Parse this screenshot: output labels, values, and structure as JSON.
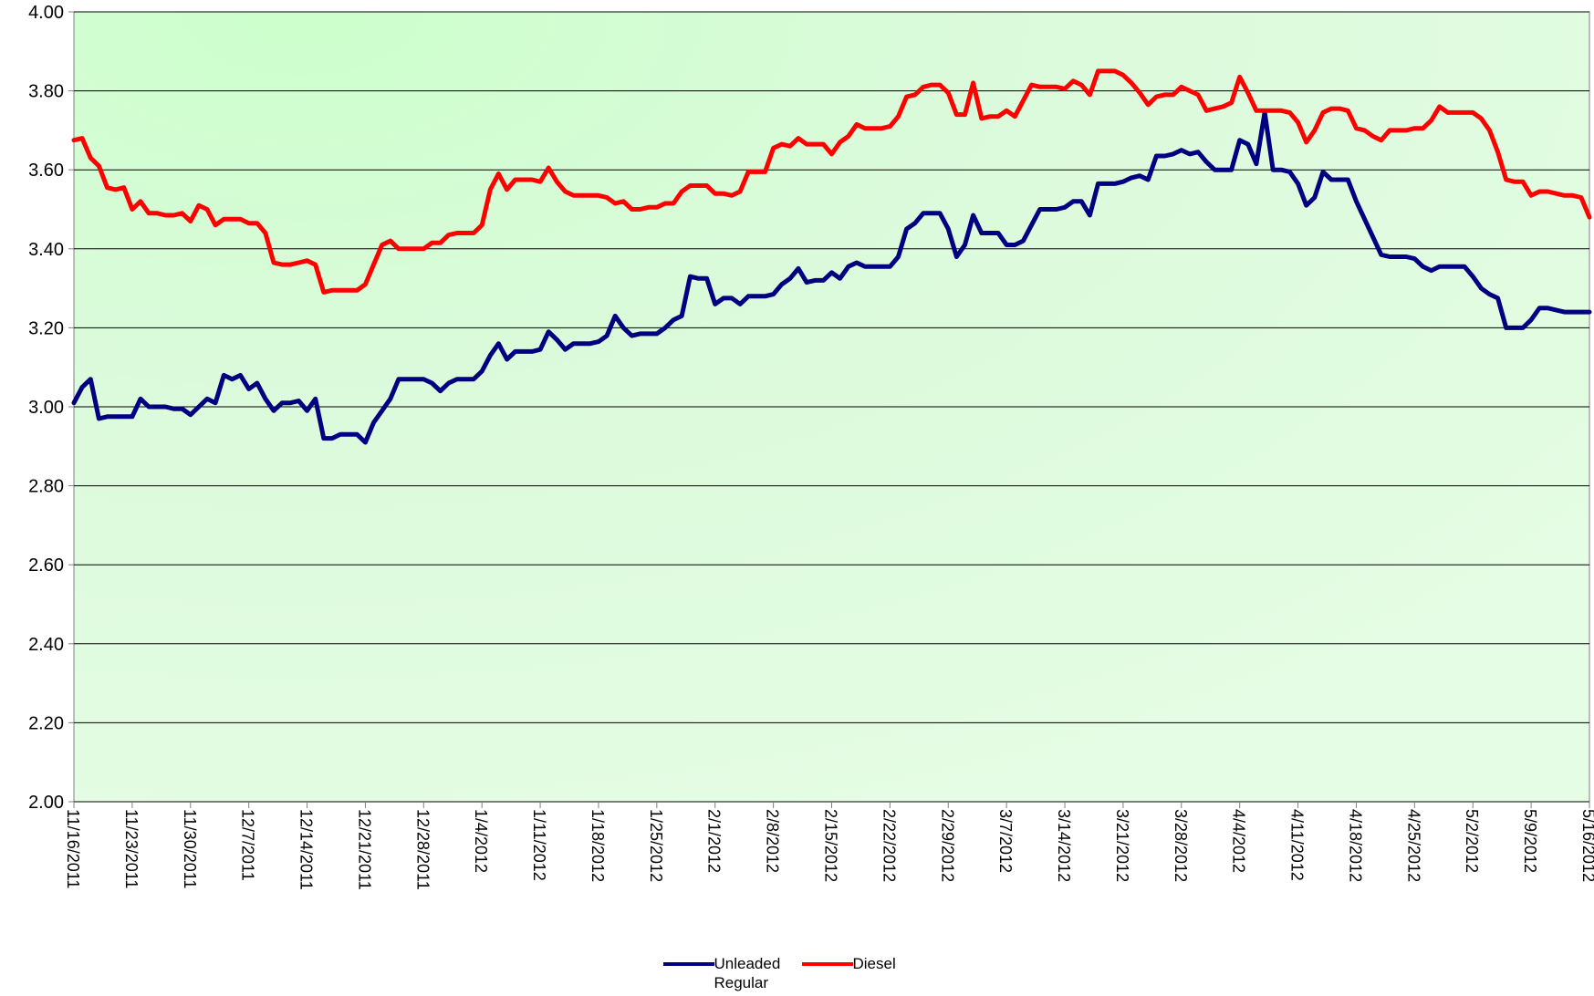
{
  "chart_data": {
    "type": "line",
    "x": [
      "11/16/2011",
      "11/17/2011",
      "11/18/2011",
      "11/19/2011",
      "11/20/2011",
      "11/21/2011",
      "11/22/2011",
      "11/23/2011",
      "11/24/2011",
      "11/25/2011",
      "11/26/2011",
      "11/27/2011",
      "11/28/2011",
      "11/29/2011",
      "11/30/2011",
      "12/1/2011",
      "12/2/2011",
      "12/3/2011",
      "12/4/2011",
      "12/5/2011",
      "12/6/2011",
      "12/7/2011",
      "12/8/2011",
      "12/9/2011",
      "12/10/2011",
      "12/11/2011",
      "12/12/2011",
      "12/13/2011",
      "12/14/2011",
      "12/15/2011",
      "12/16/2011",
      "12/17/2011",
      "12/18/2011",
      "12/19/2011",
      "12/20/2011",
      "12/21/2011",
      "12/22/2011",
      "12/23/2011",
      "12/24/2011",
      "12/25/2011",
      "12/26/2011",
      "12/27/2011",
      "12/28/2011",
      "12/29/2011",
      "12/30/2011",
      "12/31/2011",
      "1/1/2012",
      "1/2/2012",
      "1/3/2012",
      "1/4/2012",
      "1/5/2012",
      "1/6/2012",
      "1/7/2012",
      "1/8/2012",
      "1/9/2012",
      "1/10/2012",
      "1/11/2012",
      "1/12/2012",
      "1/13/2012",
      "1/14/2012",
      "1/15/2012",
      "1/16/2012",
      "1/17/2012",
      "1/18/2012",
      "1/19/2012",
      "1/20/2012",
      "1/21/2012",
      "1/22/2012",
      "1/23/2012",
      "1/24/2012",
      "1/25/2012",
      "1/26/2012",
      "1/27/2012",
      "1/28/2012",
      "1/29/2012",
      "1/30/2012",
      "1/31/2012",
      "2/1/2012",
      "2/2/2012",
      "2/3/2012",
      "2/4/2012",
      "2/5/2012",
      "2/6/2012",
      "2/7/2012",
      "2/8/2012",
      "2/9/2012",
      "2/10/2012",
      "2/11/2012",
      "2/12/2012",
      "2/13/2012",
      "2/14/2012",
      "2/15/2012",
      "2/16/2012",
      "2/17/2012",
      "2/18/2012",
      "2/19/2012",
      "2/20/2012",
      "2/21/2012",
      "2/22/2012",
      "2/23/2012",
      "2/24/2012",
      "2/25/2012",
      "2/26/2012",
      "2/27/2012",
      "2/28/2012",
      "2/29/2012",
      "3/1/2012",
      "3/2/2012",
      "3/3/2012",
      "3/4/2012",
      "3/5/2012",
      "3/6/2012",
      "3/7/2012",
      "3/8/2012",
      "3/9/2012",
      "3/10/2012",
      "3/11/2012",
      "3/12/2012",
      "3/13/2012",
      "3/14/2012",
      "3/15/2012",
      "3/16/2012",
      "3/17/2012",
      "3/18/2012",
      "3/19/2012",
      "3/20/2012",
      "3/21/2012",
      "3/22/2012",
      "3/23/2012",
      "3/24/2012",
      "3/25/2012",
      "3/26/2012",
      "3/27/2012",
      "3/28/2012",
      "3/29/2012",
      "3/30/2012",
      "3/31/2012",
      "4/1/2012",
      "4/2/2012",
      "4/3/2012",
      "4/4/2012",
      "4/5/2012",
      "4/6/2012",
      "4/7/2012",
      "4/8/2012",
      "4/9/2012",
      "4/10/2012",
      "4/11/2012",
      "4/12/2012",
      "4/13/2012",
      "4/14/2012",
      "4/15/2012",
      "4/16/2012",
      "4/17/2012",
      "4/18/2012",
      "4/19/2012",
      "4/20/2012",
      "4/21/2012",
      "4/22/2012",
      "4/23/2012",
      "4/24/2012",
      "4/25/2012",
      "4/26/2012",
      "4/27/2012",
      "4/28/2012",
      "4/29/2012",
      "4/30/2012",
      "5/1/2012",
      "5/2/2012",
      "5/3/2012",
      "5/4/2012",
      "5/5/2012",
      "5/6/2012",
      "5/7/2012",
      "5/8/2012",
      "5/9/2012",
      "5/10/2012",
      "5/11/2012",
      "5/12/2012",
      "5/13/2012",
      "5/14/2012",
      "5/15/2012",
      "5/16/2012"
    ],
    "series": [
      {
        "name": "Unleaded Regular",
        "color": "#000080",
        "values": [
          3.01,
          3.05,
          3.07,
          2.97,
          2.975,
          2.975,
          2.975,
          2.975,
          3.02,
          3.0,
          3.0,
          3.0,
          2.995,
          2.995,
          2.98,
          3.0,
          3.02,
          3.01,
          3.08,
          3.07,
          3.08,
          3.045,
          3.06,
          3.02,
          2.99,
          3.01,
          3.01,
          3.015,
          2.99,
          3.02,
          2.92,
          2.92,
          2.93,
          2.93,
          2.93,
          2.91,
          2.96,
          2.99,
          3.02,
          3.07,
          3.07,
          3.07,
          3.07,
          3.06,
          3.04,
          3.06,
          3.07,
          3.07,
          3.07,
          3.09,
          3.13,
          3.16,
          3.12,
          3.14,
          3.14,
          3.14,
          3.145,
          3.19,
          3.17,
          3.145,
          3.16,
          3.16,
          3.16,
          3.165,
          3.18,
          3.23,
          3.2,
          3.18,
          3.185,
          3.185,
          3.185,
          3.2,
          3.22,
          3.23,
          3.33,
          3.325,
          3.325,
          3.26,
          3.275,
          3.275,
          3.26,
          3.28,
          3.28,
          3.28,
          3.285,
          3.31,
          3.325,
          3.35,
          3.315,
          3.32,
          3.32,
          3.34,
          3.325,
          3.355,
          3.365,
          3.355,
          3.355,
          3.355,
          3.355,
          3.38,
          3.45,
          3.465,
          3.49,
          3.49,
          3.49,
          3.45,
          3.38,
          3.41,
          3.485,
          3.44,
          3.44,
          3.44,
          3.41,
          3.41,
          3.42,
          3.46,
          3.5,
          3.5,
          3.5,
          3.505,
          3.52,
          3.52,
          3.485,
          3.565,
          3.565,
          3.565,
          3.57,
          3.58,
          3.585,
          3.575,
          3.635,
          3.635,
          3.64,
          3.65,
          3.64,
          3.645,
          3.62,
          3.6,
          3.6,
          3.6,
          3.675,
          3.665,
          3.615,
          3.745,
          3.6,
          3.6,
          3.595,
          3.565,
          3.51,
          3.53,
          3.595,
          3.575,
          3.575,
          3.575,
          3.52,
          3.475,
          3.43,
          3.385,
          3.38,
          3.38,
          3.38,
          3.375,
          3.355,
          3.345,
          3.355,
          3.355,
          3.355,
          3.355,
          3.33,
          3.3,
          3.285,
          3.275,
          3.2,
          3.2,
          3.2,
          3.22,
          3.25,
          3.25,
          3.245,
          3.24,
          3.24,
          3.24,
          3.24
        ]
      },
      {
        "name": "Diesel",
        "color": "#ff0000",
        "values": [
          3.675,
          3.68,
          3.63,
          3.61,
          3.555,
          3.55,
          3.555,
          3.5,
          3.52,
          3.49,
          3.49,
          3.485,
          3.485,
          3.49,
          3.47,
          3.51,
          3.5,
          3.46,
          3.475,
          3.475,
          3.475,
          3.465,
          3.465,
          3.44,
          3.365,
          3.36,
          3.36,
          3.365,
          3.37,
          3.36,
          3.29,
          3.295,
          3.295,
          3.295,
          3.295,
          3.31,
          3.36,
          3.41,
          3.42,
          3.4,
          3.4,
          3.4,
          3.4,
          3.415,
          3.415,
          3.435,
          3.44,
          3.44,
          3.44,
          3.46,
          3.55,
          3.59,
          3.55,
          3.575,
          3.575,
          3.575,
          3.57,
          3.605,
          3.57,
          3.545,
          3.535,
          3.535,
          3.535,
          3.535,
          3.53,
          3.515,
          3.52,
          3.5,
          3.5,
          3.505,
          3.505,
          3.515,
          3.515,
          3.545,
          3.56,
          3.56,
          3.56,
          3.54,
          3.54,
          3.535,
          3.545,
          3.595,
          3.595,
          3.595,
          3.655,
          3.665,
          3.66,
          3.68,
          3.665,
          3.665,
          3.665,
          3.64,
          3.67,
          3.685,
          3.715,
          3.705,
          3.705,
          3.705,
          3.71,
          3.735,
          3.785,
          3.79,
          3.81,
          3.815,
          3.815,
          3.795,
          3.74,
          3.74,
          3.82,
          3.73,
          3.735,
          3.735,
          3.75,
          3.735,
          3.775,
          3.815,
          3.81,
          3.81,
          3.81,
          3.805,
          3.825,
          3.815,
          3.79,
          3.85,
          3.85,
          3.85,
          3.84,
          3.82,
          3.795,
          3.765,
          3.785,
          3.79,
          3.79,
          3.81,
          3.8,
          3.79,
          3.75,
          3.755,
          3.76,
          3.77,
          3.835,
          3.795,
          3.75,
          3.75,
          3.75,
          3.75,
          3.745,
          3.72,
          3.67,
          3.7,
          3.745,
          3.755,
          3.755,
          3.75,
          3.705,
          3.7,
          3.685,
          3.675,
          3.7,
          3.7,
          3.7,
          3.705,
          3.705,
          3.725,
          3.76,
          3.745,
          3.745,
          3.745,
          3.745,
          3.73,
          3.7,
          3.645,
          3.575,
          3.57,
          3.57,
          3.535,
          3.545,
          3.545,
          3.54,
          3.535,
          3.535,
          3.53,
          3.48
        ]
      }
    ],
    "xlim": [
      "11/16/2011",
      "5/16/2012"
    ],
    "xticks": [
      "11/16/2011",
      "11/23/2011",
      "11/30/2011",
      "12/7/2011",
      "12/14/2011",
      "12/21/2011",
      "12/28/2011",
      "1/4/2012",
      "1/11/2012",
      "1/18/2012",
      "1/25/2012",
      "2/1/2012",
      "2/8/2012",
      "2/15/2012",
      "2/22/2012",
      "2/29/2012",
      "3/7/2012",
      "3/14/2012",
      "3/21/2012",
      "3/28/2012",
      "4/4/2012",
      "4/11/2012",
      "4/18/2012",
      "4/25/2012",
      "5/2/2012",
      "5/9/2012",
      "5/16/2012"
    ],
    "ylim": [
      2,
      4
    ],
    "yticks": [
      {
        "value": 2,
        "label": "2.00"
      },
      {
        "value": 2.2,
        "label": "2.20"
      },
      {
        "value": 2.4,
        "label": "2.40"
      },
      {
        "value": 2.6,
        "label": "2.60"
      },
      {
        "value": 2.8,
        "label": "2.80"
      },
      {
        "value": 3,
        "label": "3.00"
      },
      {
        "value": 3.2,
        "label": "3.20"
      },
      {
        "value": 3.4,
        "label": "3.40"
      },
      {
        "value": 3.6,
        "label": "3.60"
      },
      {
        "value": 3.8,
        "label": "3.80"
      },
      {
        "value": 4,
        "label": "4.00"
      }
    ],
    "grid": true,
    "legend": "bottom"
  }
}
